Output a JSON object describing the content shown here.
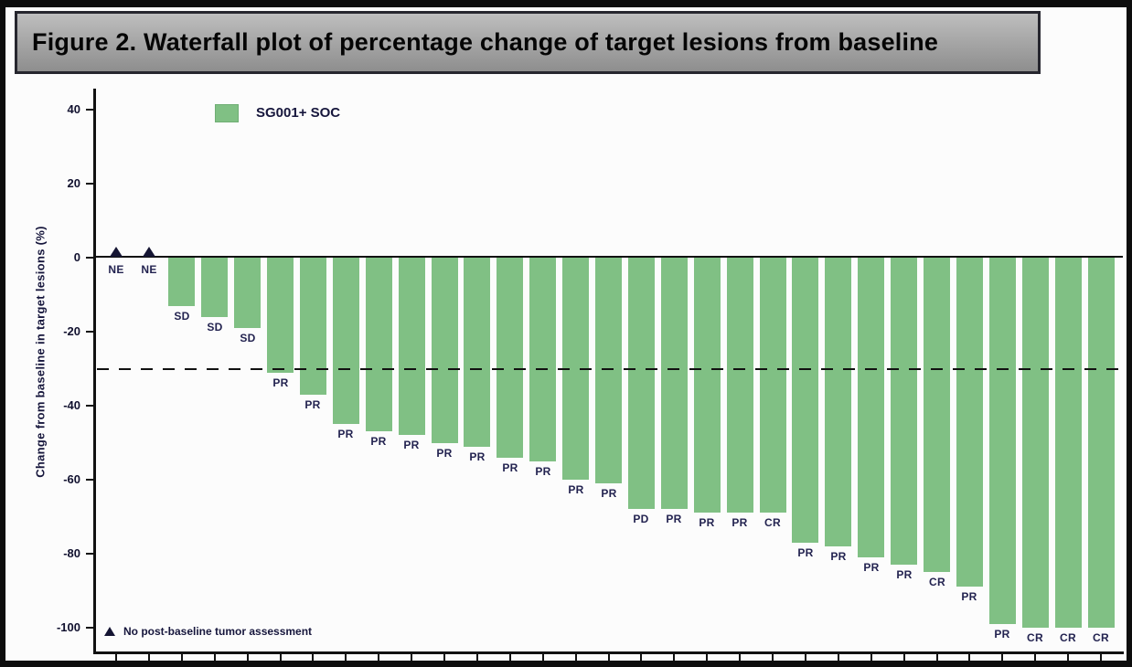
{
  "figure": {
    "title": "Figure 2. Waterfall plot of percentage change of target lesions from baseline"
  },
  "legend": {
    "label": "SG001+ SOC",
    "swatch_color": "#80c084"
  },
  "footnote": {
    "marker": "triangle",
    "text": "No post-baseline tumor assessment"
  },
  "chart_data": {
    "type": "bar",
    "title": "Waterfall plot of percentage change of target lesions from baseline",
    "series_name": "SG001+ SOC",
    "xlabel": "",
    "ylabel": "Change from baseline in target lesions (%)",
    "ylim": [
      -104,
      44
    ],
    "yticks": [
      40,
      20,
      0,
      -20,
      -40,
      -60,
      -80,
      -100
    ],
    "reference_line_y": -30,
    "grid": false,
    "legend_position": "top-left-inside",
    "bar_color": "#80c084",
    "marker_color": "#151533",
    "label_color": "#232350",
    "axis_color": "#111111",
    "marker_meaning": "No post-baseline tumor assessment",
    "patients": [
      {
        "response": "NE",
        "value": 0,
        "marker": "triangle"
      },
      {
        "response": "NE",
        "value": 0,
        "marker": "triangle"
      },
      {
        "response": "SD",
        "value": -13
      },
      {
        "response": "SD",
        "value": -16
      },
      {
        "response": "SD",
        "value": -19
      },
      {
        "response": "PR",
        "value": -31
      },
      {
        "response": "PR",
        "value": -37
      },
      {
        "response": "PR",
        "value": -45
      },
      {
        "response": "PR",
        "value": -47
      },
      {
        "response": "PR",
        "value": -48
      },
      {
        "response": "PR",
        "value": -50
      },
      {
        "response": "PR",
        "value": -51
      },
      {
        "response": "PR",
        "value": -54
      },
      {
        "response": "PR",
        "value": -55
      },
      {
        "response": "PR",
        "value": -60
      },
      {
        "response": "PR",
        "value": -61
      },
      {
        "response": "PD",
        "value": -68
      },
      {
        "response": "PR",
        "value": -68
      },
      {
        "response": "PR",
        "value": -69
      },
      {
        "response": "PR",
        "value": -69
      },
      {
        "response": "CR",
        "value": -69
      },
      {
        "response": "PR",
        "value": -77
      },
      {
        "response": "PR",
        "value": -78
      },
      {
        "response": "PR",
        "value": -81
      },
      {
        "response": "PR",
        "value": -83
      },
      {
        "response": "CR",
        "value": -85
      },
      {
        "response": "PR",
        "value": -89
      },
      {
        "response": "PR",
        "value": -99
      },
      {
        "response": "CR",
        "value": -100
      },
      {
        "response": "CR",
        "value": -100
      },
      {
        "response": "CR",
        "value": -100
      }
    ]
  }
}
